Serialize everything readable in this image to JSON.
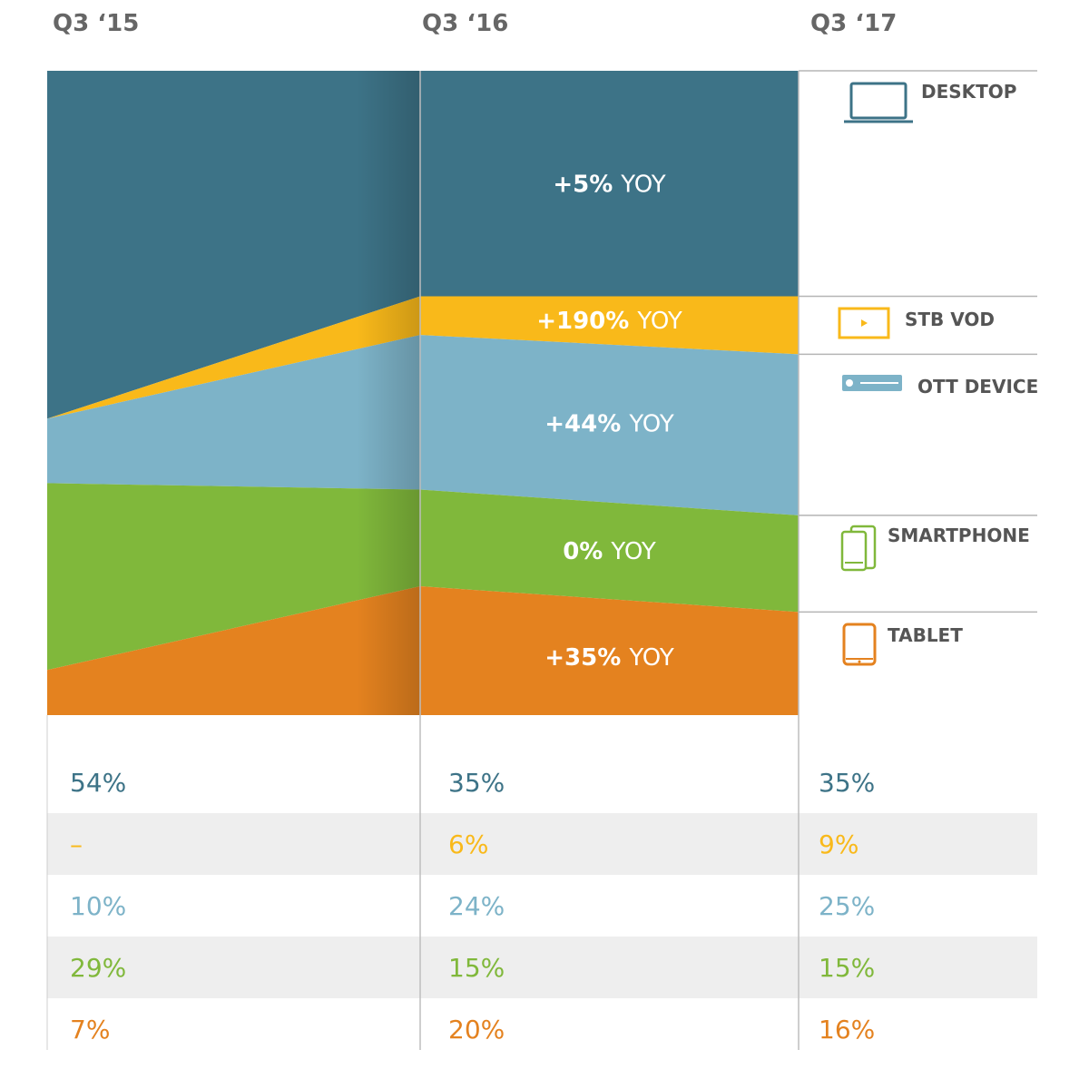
{
  "chart_data": {
    "type": "area",
    "periods": [
      "Q3 ‘15",
      "Q3 ‘16",
      "Q3 ‘17"
    ],
    "series": [
      {
        "name": "DESKTOP",
        "color": "#3d7387",
        "icon": "desktop-icon",
        "values": [
          54,
          35,
          35
        ],
        "display": [
          "54%",
          "35%",
          "35%"
        ],
        "yoy": "+5% YOY"
      },
      {
        "name": "STB VOD",
        "color": "#f9b91a",
        "icon": "stb-vod-icon",
        "values": [
          0,
          6,
          9
        ],
        "display": [
          "–",
          "6%",
          "9%"
        ],
        "yoy": "+190% YOY"
      },
      {
        "name": "OTT DEVICE",
        "color": "#7db3c8",
        "icon": "ott-device-icon",
        "values": [
          10,
          24,
          25
        ],
        "display": [
          "10%",
          "24%",
          "25%"
        ],
        "yoy": "+44% YOY"
      },
      {
        "name": "SMARTPHONE",
        "color": "#80b83b",
        "icon": "smartphone-icon",
        "values": [
          29,
          15,
          15
        ],
        "display": [
          "29%",
          "15%",
          "15%"
        ],
        "yoy": "0% YOY"
      },
      {
        "name": "TABLET",
        "color": "#e4821f",
        "icon": "tablet-icon",
        "values": [
          7,
          20,
          16
        ],
        "display": [
          "7%",
          "20%",
          "16%"
        ],
        "yoy": "+35% YOY"
      }
    ]
  }
}
